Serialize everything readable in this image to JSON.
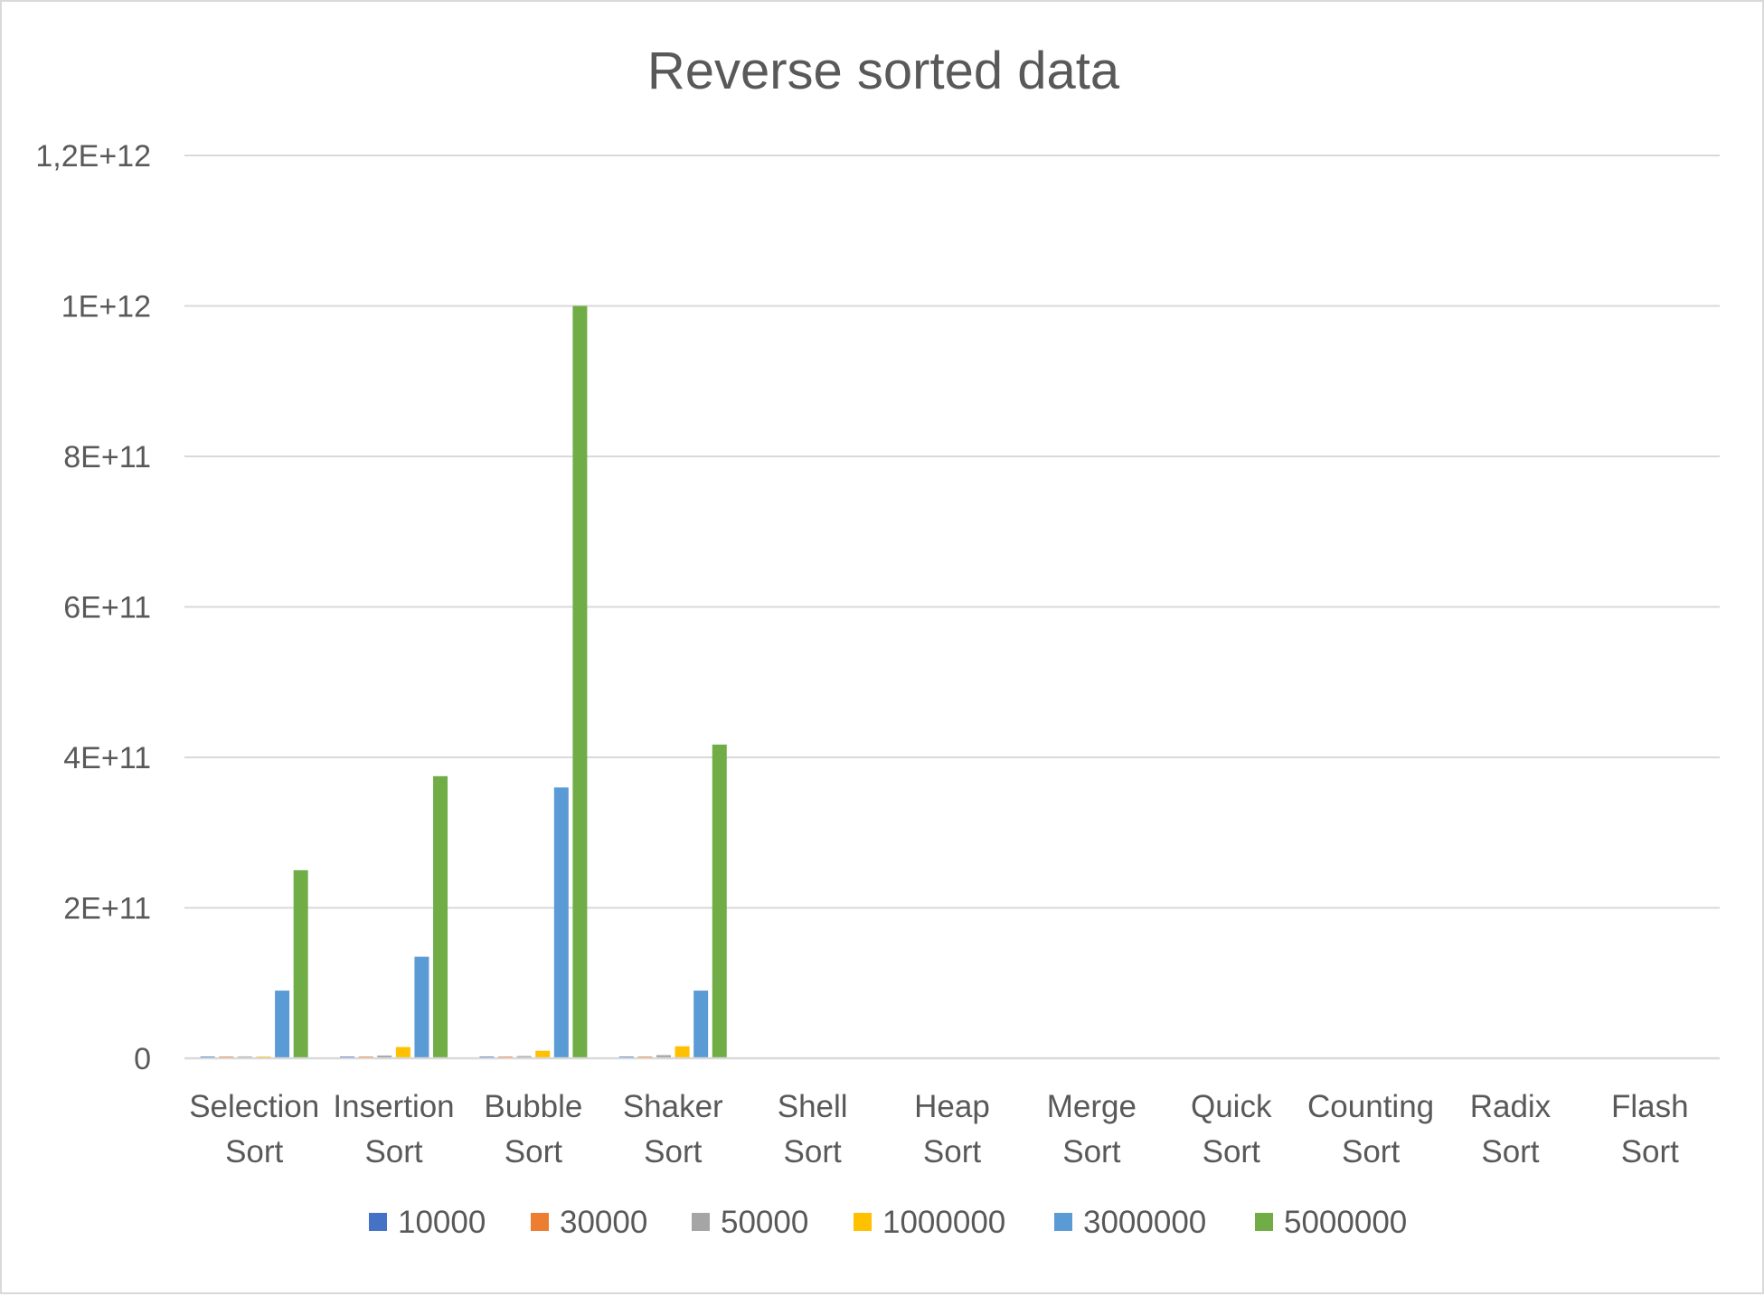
{
  "chart_data": {
    "type": "bar",
    "title": "Reverse sorted data",
    "xlabel": "",
    "ylabel": "",
    "ylim": [
      0,
      1200000000000
    ],
    "y_ticks": [
      0,
      200000000000,
      400000000000,
      600000000000,
      800000000000,
      1000000000000,
      1200000000000
    ],
    "y_tick_labels": [
      "0",
      "2E+11",
      "4E+11",
      "6E+11",
      "8E+11",
      "1E+12",
      "1,2E+12"
    ],
    "categories": [
      [
        "Selection",
        "Sort"
      ],
      [
        "Insertion",
        "Sort"
      ],
      [
        "Bubble",
        "Sort"
      ],
      [
        "Shaker",
        "Sort"
      ],
      [
        "Shell",
        "Sort"
      ],
      [
        "Heap",
        "Sort"
      ],
      [
        "Merge",
        "Sort"
      ],
      [
        "Quick",
        "Sort"
      ],
      [
        "Counting",
        "Sort"
      ],
      [
        "Radix",
        "Sort"
      ],
      [
        "Flash",
        "Sort"
      ]
    ],
    "grid": true,
    "legend_position": "bottom",
    "series": [
      {
        "name": "10000",
        "color": "#4472c4",
        "values": [
          100000000,
          100000000,
          100000000,
          100000000,
          0,
          0,
          0,
          0,
          0,
          0,
          0
        ]
      },
      {
        "name": "30000",
        "color": "#ed7d31",
        "values": [
          900000000,
          900000000,
          900000000,
          900000000,
          0,
          0,
          0,
          0,
          0,
          0,
          0
        ]
      },
      {
        "name": "50000",
        "color": "#a5a5a5",
        "values": [
          2500000000,
          3700000000,
          3000000000,
          4200000000,
          0,
          0,
          0,
          0,
          0,
          0,
          0
        ]
      },
      {
        "name": "1000000",
        "color": "#ffc000",
        "values": [
          1000000000,
          15000000000,
          10000000000,
          16000000000,
          0,
          0,
          0,
          0,
          0,
          0,
          0
        ]
      },
      {
        "name": "3000000",
        "color": "#5b9bd5",
        "values": [
          90000000000,
          135000000000,
          360000000000,
          90000000000,
          0,
          0,
          0,
          0,
          0,
          0,
          0
        ]
      },
      {
        "name": "5000000",
        "color": "#70ad47",
        "values": [
          250000000000,
          375000000000,
          1000000000000,
          417000000000,
          0,
          0,
          0,
          0,
          0,
          0,
          0
        ]
      }
    ]
  }
}
